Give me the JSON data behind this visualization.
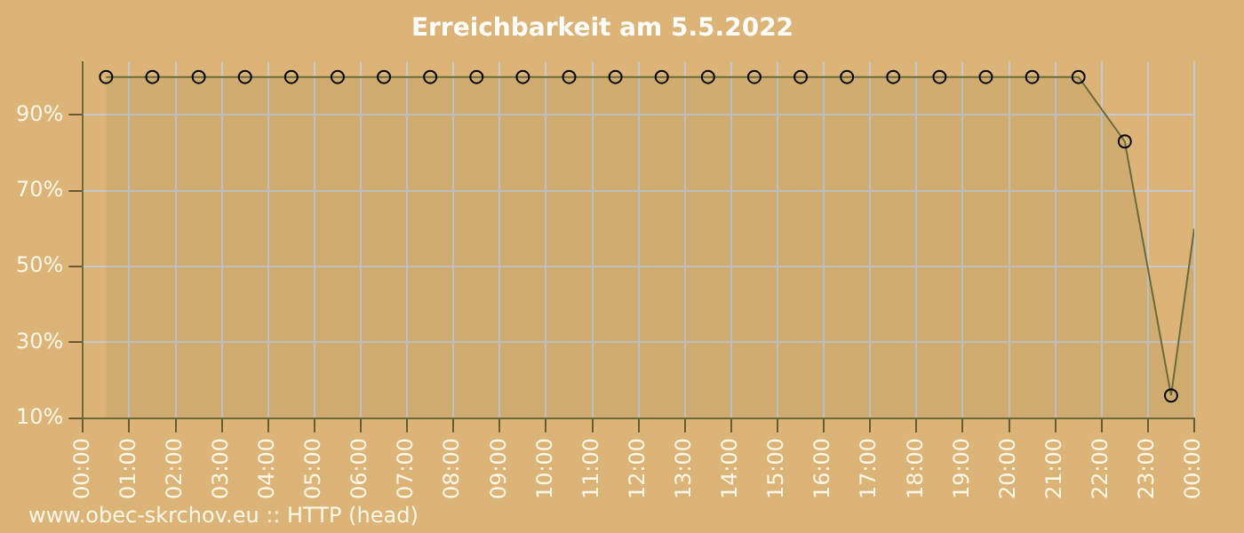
{
  "chart_data": {
    "type": "area",
    "title": "Erreichbarkeit am 5.5.2022",
    "x": [
      0.5,
      1.5,
      2.5,
      3.5,
      4.5,
      5.5,
      6.5,
      7.5,
      8.5,
      9.5,
      10.5,
      11.5,
      12.5,
      13.5,
      14.5,
      15.5,
      16.5,
      17.5,
      18.5,
      19.5,
      20.5,
      21.5,
      22.5,
      23.5
    ],
    "series": [
      {
        "color": "#6b6b3a",
        "values": [
          100,
          100,
          100,
          100,
          100,
          100,
          100,
          100,
          100,
          100,
          100,
          100,
          100,
          100,
          100,
          100,
          100,
          100,
          100,
          100,
          100,
          100,
          83,
          16
        ]
      },
      {
        "color": "#6b6b3a",
        "x": [
          23.5,
          24
        ],
        "values": [
          16,
          60
        ],
        "marker": "none"
      }
    ],
    "xlim": [
      0,
      24
    ],
    "xticks": [
      {
        "value": 0,
        "label": "00:00"
      },
      {
        "value": 1,
        "label": "01:00"
      },
      {
        "value": 2,
        "label": "02:00"
      },
      {
        "value": 3,
        "label": "03:00"
      },
      {
        "value": 4,
        "label": "04:00"
      },
      {
        "value": 5,
        "label": "05:00"
      },
      {
        "value": 6,
        "label": "06:00"
      },
      {
        "value": 7,
        "label": "07:00"
      },
      {
        "value": 8,
        "label": "08:00"
      },
      {
        "value": 9,
        "label": "09:00"
      },
      {
        "value": 10,
        "label": "10:00"
      },
      {
        "value": 11,
        "label": "11:00"
      },
      {
        "value": 12,
        "label": "12:00"
      },
      {
        "value": 13,
        "label": "13:00"
      },
      {
        "value": 14,
        "label": "14:00"
      },
      {
        "value": 15,
        "label": "15:00"
      },
      {
        "value": 16,
        "label": "16:00"
      },
      {
        "value": 17,
        "label": "17:00"
      },
      {
        "value": 18,
        "label": "18:00"
      },
      {
        "value": 19,
        "label": "19:00"
      },
      {
        "value": 20,
        "label": "20:00"
      },
      {
        "value": 21,
        "label": "21:00"
      },
      {
        "value": 22,
        "label": "22:00"
      },
      {
        "value": 23,
        "label": "23:00"
      },
      {
        "value": 24,
        "label": "00:00"
      }
    ],
    "ylim": [
      10,
      104
    ],
    "yticks": [
      {
        "value": 10,
        "label": "10%"
      },
      {
        "value": 30,
        "label": "30%"
      },
      {
        "value": 50,
        "label": "50%"
      },
      {
        "value": 70,
        "label": "70%"
      },
      {
        "value": 90,
        "label": "90%"
      }
    ],
    "grid": true,
    "marker": "circle",
    "legend": false,
    "annotations": [
      "www.obec-skrchov.eu :: HTTP (head)"
    ]
  }
}
